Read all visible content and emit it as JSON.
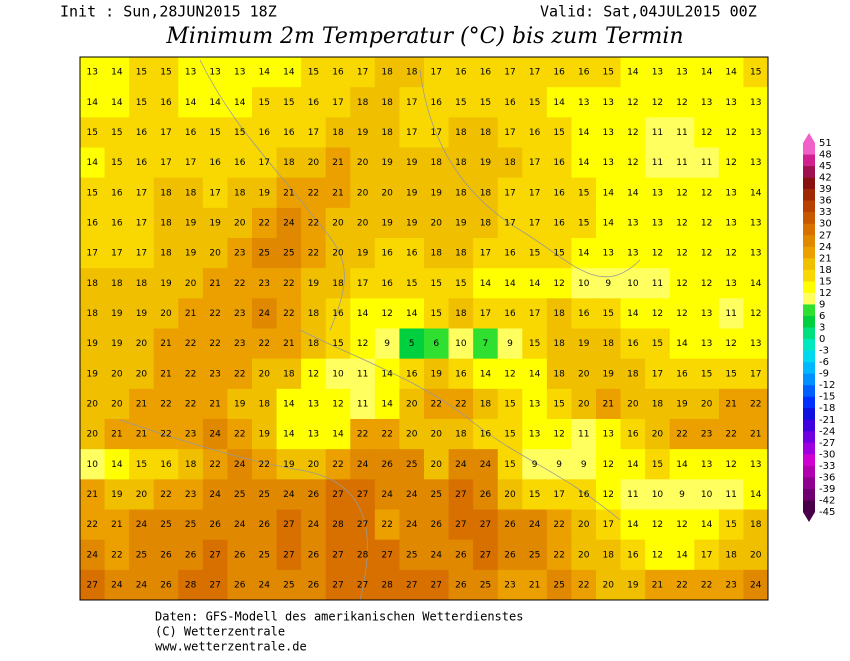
{
  "header": {
    "init": "Init : Sun,28JUN2015 18Z",
    "valid": "Valid: Sat,04JUL2015 00Z",
    "title": "Minimum 2m Temperatur (°C) bis zum Termin"
  },
  "map": {
    "grid": [
      [
        13,
        14,
        15,
        15,
        13,
        13,
        13,
        14,
        14,
        15,
        16,
        17,
        18,
        18,
        17,
        16,
        16,
        17,
        17,
        16,
        16,
        15,
        14,
        13,
        13,
        14,
        14,
        15
      ],
      [
        14,
        14,
        15,
        16,
        14,
        14,
        14,
        15,
        15,
        16,
        17,
        18,
        18,
        17,
        16,
        15,
        15,
        16,
        15,
        14,
        13,
        13,
        12,
        12,
        12,
        13,
        13,
        13
      ],
      [
        15,
        15,
        16,
        17,
        16,
        15,
        15,
        16,
        16,
        17,
        18,
        19,
        18,
        17,
        17,
        18,
        18,
        17,
        16,
        15,
        14,
        13,
        12,
        11,
        11,
        12,
        12,
        13
      ],
      [
        14,
        15,
        16,
        17,
        17,
        16,
        16,
        17,
        18,
        20,
        21,
        20,
        19,
        19,
        18,
        18,
        19,
        18,
        17,
        16,
        14,
        13,
        12,
        11,
        11,
        11,
        12,
        13
      ],
      [
        15,
        16,
        17,
        18,
        18,
        17,
        18,
        19,
        21,
        22,
        21,
        20,
        20,
        19,
        19,
        18,
        18,
        17,
        17,
        16,
        15,
        14,
        14,
        13,
        12,
        12,
        13,
        14
      ],
      [
        16,
        16,
        17,
        18,
        19,
        19,
        20,
        22,
        24,
        22,
        20,
        20,
        19,
        19,
        20,
        19,
        18,
        17,
        17,
        16,
        15,
        14,
        13,
        13,
        12,
        12,
        13,
        13
      ],
      [
        17,
        17,
        17,
        18,
        19,
        20,
        23,
        25,
        25,
        22,
        20,
        19,
        16,
        16,
        18,
        18,
        17,
        16,
        15,
        15,
        14,
        13,
        13,
        12,
        12,
        12,
        12,
        13
      ],
      [
        18,
        18,
        18,
        19,
        20,
        21,
        22,
        23,
        22,
        19,
        18,
        17,
        16,
        15,
        15,
        15,
        14,
        14,
        14,
        12,
        10,
        9,
        10,
        11,
        12,
        12,
        13,
        14
      ],
      [
        18,
        19,
        19,
        20,
        21,
        22,
        23,
        24,
        22,
        18,
        16,
        14,
        12,
        14,
        15,
        18,
        17,
        16,
        17,
        18,
        16,
        15,
        14,
        12,
        12,
        13,
        11,
        12
      ],
      [
        19,
        19,
        20,
        21,
        22,
        22,
        23,
        22,
        21,
        18,
        15,
        12,
        9,
        5,
        6,
        10,
        7,
        9,
        15,
        18,
        19,
        18,
        16,
        15,
        14,
        13,
        12,
        13
      ],
      [
        19,
        20,
        20,
        21,
        22,
        23,
        22,
        20,
        18,
        12,
        10,
        11,
        14,
        16,
        19,
        16,
        14,
        12,
        14,
        18,
        20,
        19,
        18,
        17,
        16,
        15,
        15,
        17
      ],
      [
        20,
        20,
        21,
        22,
        22,
        21,
        19,
        18,
        14,
        13,
        12,
        11,
        14,
        20,
        22,
        22,
        18,
        15,
        13,
        15,
        20,
        21,
        20,
        18,
        19,
        20,
        21,
        22
      ],
      [
        20,
        21,
        21,
        22,
        23,
        24,
        22,
        19,
        14,
        13,
        14,
        22,
        22,
        20,
        20,
        18,
        16,
        15,
        13,
        12,
        11,
        13,
        16,
        20,
        22,
        23,
        22,
        21
      ],
      [
        10,
        14,
        15,
        16,
        18,
        22,
        24,
        22,
        19,
        20,
        22,
        24,
        26,
        25,
        20,
        24,
        24,
        15,
        9,
        9,
        9,
        12,
        14,
        15,
        14,
        13,
        12,
        13
      ],
      [
        21,
        19,
        20,
        22,
        23,
        24,
        25,
        25,
        24,
        26,
        27,
        27,
        24,
        24,
        25,
        27,
        26,
        20,
        15,
        17,
        16,
        12,
        11,
        10,
        9,
        10,
        11,
        14
      ],
      [
        22,
        21,
        24,
        25,
        25,
        26,
        24,
        26,
        27,
        24,
        28,
        27,
        22,
        24,
        26,
        27,
        27,
        26,
        24,
        22,
        20,
        17,
        14,
        12,
        12,
        14,
        15,
        18
      ],
      [
        24,
        22,
        25,
        26,
        26,
        27,
        26,
        25,
        27,
        26,
        27,
        28,
        27,
        25,
        24,
        26,
        27,
        26,
        25,
        22,
        20,
        18,
        16,
        12,
        14,
        17,
        18,
        20
      ],
      [
        27,
        24,
        24,
        26,
        28,
        27,
        26,
        24,
        25,
        26,
        27,
        27,
        28,
        27,
        27,
        26,
        25,
        23,
        21,
        25,
        22,
        20,
        19,
        21,
        22,
        22,
        23,
        24
      ]
    ]
  },
  "colorbar": {
    "labels": [
      51,
      48,
      45,
      42,
      39,
      36,
      33,
      30,
      27,
      24,
      21,
      18,
      15,
      12,
      9,
      6,
      3,
      0,
      -3,
      -6,
      -9,
      -12,
      -15,
      -18,
      -21,
      -24,
      -27,
      -30,
      -33,
      -36,
      -39,
      -42,
      -45
    ],
    "colors": [
      "#f060c8",
      "#d02090",
      "#a01050",
      "#881010",
      "#a02800",
      "#b84000",
      "#c85800",
      "#d87000",
      "#e08800",
      "#eca000",
      "#f0c000",
      "#f8d800",
      "#ffff00",
      "#ffff60",
      "#30e030",
      "#00d040",
      "#00e080",
      "#00e8c0",
      "#00d8f0",
      "#00b8ff",
      "#0090ff",
      "#0060ff",
      "#0030ff",
      "#1010e0",
      "#4000e0",
      "#7000e0",
      "#a000e0",
      "#d000d0",
      "#b000b0",
      "#900090",
      "#700070",
      "#4a0048"
    ]
  },
  "footer": {
    "line1": "Daten: GFS-Modell des amerikanischen Wetterdienstes",
    "line2": "(C) Wetterzentrale",
    "line3": "www.wetterzentrale.de"
  }
}
